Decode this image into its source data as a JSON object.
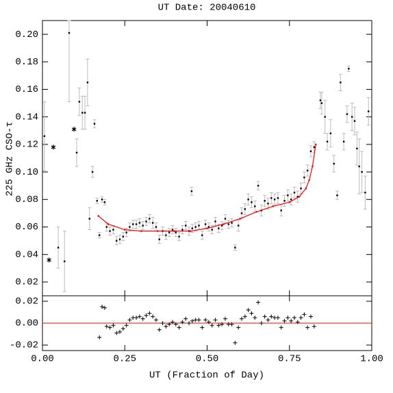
{
  "chart_data": [
    {
      "type": "scatter",
      "title": "UT Date: 20040610",
      "y_label": "225 GHz CSO-τ",
      "xlim": [
        0,
        1
      ],
      "ylim": [
        0.01,
        0.21
      ],
      "yticks": [
        {
          "value": 0.02,
          "label": "0.02"
        },
        {
          "value": 0.04,
          "label": "0.04"
        },
        {
          "value": 0.06,
          "label": "0.06"
        },
        {
          "value": 0.08,
          "label": "0.08"
        },
        {
          "value": 0.1,
          "label": "0.10"
        },
        {
          "value": 0.12,
          "label": "0.12"
        },
        {
          "value": 0.14,
          "label": "0.14"
        },
        {
          "value": 0.16,
          "label": "0.16"
        },
        {
          "value": 0.18,
          "label": "0.18"
        },
        {
          "value": 0.2,
          "label": "0.20"
        }
      ],
      "series": [
        {
          "marker": "dot",
          "color": "#000000",
          "error_color": "#bbbbbb",
          "x": [
            0.006,
            0.048,
            0.067,
            0.081,
            0.104,
            0.112,
            0.121,
            0.129,
            0.137,
            0.143,
            0.152,
            0.158,
            0.166,
            0.173,
            0.181,
            0.189,
            0.195,
            0.205,
            0.215,
            0.225,
            0.235,
            0.245,
            0.255,
            0.265,
            0.275,
            0.285,
            0.295,
            0.305,
            0.315,
            0.325,
            0.335,
            0.345,
            0.355,
            0.365,
            0.375,
            0.385,
            0.395,
            0.405,
            0.415,
            0.425,
            0.435,
            0.445,
            0.455,
            0.465,
            0.475,
            0.485,
            0.495,
            0.505,
            0.515,
            0.525,
            0.535,
            0.545,
            0.555,
            0.565,
            0.575,
            0.585,
            0.595,
            0.605,
            0.615,
            0.625,
            0.635,
            0.645,
            0.655,
            0.665,
            0.675,
            0.685,
            0.695,
            0.705,
            0.715,
            0.725,
            0.735,
            0.745,
            0.755,
            0.765,
            0.775,
            0.785,
            0.795,
            0.805,
            0.815,
            0.825,
            0.453,
            0.844,
            0.848,
            0.858,
            0.865,
            0.875,
            0.885,
            0.895,
            0.905,
            0.915,
            0.925,
            0.93,
            0.94,
            0.948,
            0.955,
            0.962,
            0.97,
            0.98,
            0.99
          ],
          "values": [
            0.126,
            0.045,
            0.035,
            0.201,
            0.114,
            0.151,
            0.143,
            0.143,
            0.165,
            0.066,
            0.1,
            0.135,
            0.079,
            0.054,
            0.08,
            0.078,
            0.06,
            0.057,
            0.058,
            0.05,
            0.051,
            0.053,
            0.056,
            0.06,
            0.062,
            0.062,
            0.063,
            0.061,
            0.064,
            0.066,
            0.063,
            0.06,
            0.051,
            0.057,
            0.054,
            0.056,
            0.058,
            0.056,
            0.053,
            0.058,
            0.061,
            0.057,
            0.059,
            0.06,
            0.061,
            0.054,
            0.062,
            0.06,
            0.058,
            0.064,
            0.059,
            0.061,
            0.066,
            0.062,
            0.063,
            0.045,
            0.061,
            0.07,
            0.073,
            0.08,
            0.078,
            0.075,
            0.09,
            0.072,
            0.079,
            0.077,
            0.081,
            0.08,
            0.081,
            0.072,
            0.079,
            0.083,
            0.08,
            0.085,
            0.082,
            0.088,
            0.096,
            0.101,
            0.115,
            0.118,
            0.086,
            0.152,
            0.15,
            0.14,
            0.122,
            0.128,
            0.106,
            0.083,
            0.165,
            0.122,
            0.142,
            0.175,
            0.14,
            0.137,
            0.117,
            0.104,
            0.1,
            0.085,
            0.144
          ],
          "errors": [
            0.025,
            0.015,
            0.022,
            0.05,
            0.01,
            0.01,
            0.012,
            0.012,
            0.017,
            0.008,
            0.004,
            0.003,
            0.002,
            0.002,
            0.002,
            0.002,
            0.003,
            0.003,
            0.003,
            0.003,
            0.003,
            0.003,
            0.003,
            0.003,
            0.003,
            0.003,
            0.003,
            0.003,
            0.003,
            0.003,
            0.004,
            0.003,
            0.003,
            0.003,
            0.003,
            0.003,
            0.003,
            0.003,
            0.003,
            0.003,
            0.003,
            0.003,
            0.003,
            0.003,
            0.003,
            0.003,
            0.003,
            0.003,
            0.003,
            0.003,
            0.003,
            0.003,
            0.003,
            0.003,
            0.003,
            0.002,
            0.004,
            0.004,
            0.004,
            0.004,
            0.004,
            0.004,
            0.003,
            0.004,
            0.004,
            0.004,
            0.004,
            0.004,
            0.004,
            0.004,
            0.004,
            0.004,
            0.004,
            0.004,
            0.004,
            0.004,
            0.004,
            0.004,
            0.004,
            0.004,
            0.003,
            0.006,
            0.008,
            0.012,
            0.006,
            0.01,
            0.006,
            0.003,
            0.006,
            0.006,
            0.006,
            0.002,
            0.01,
            0.01,
            0.012,
            0.02,
            0.015,
            0.012,
            0.01
          ]
        },
        {
          "marker": "star",
          "color": "#000000",
          "x": [
            0.02,
            0.033,
            0.096
          ],
          "values": [
            0.036,
            0.118,
            0.131
          ]
        },
        {
          "marker": "line",
          "color": "#ff0000",
          "x": [
            0.17,
            0.2,
            0.25,
            0.3,
            0.35,
            0.4,
            0.45,
            0.5,
            0.55,
            0.6,
            0.65,
            0.7,
            0.75,
            0.78,
            0.8,
            0.81,
            0.82,
            0.83
          ],
          "values": [
            0.068,
            0.062,
            0.058,
            0.057,
            0.057,
            0.057,
            0.057,
            0.059,
            0.062,
            0.066,
            0.071,
            0.075,
            0.078,
            0.082,
            0.088,
            0.094,
            0.104,
            0.12
          ]
        }
      ]
    },
    {
      "type": "scatter",
      "x_label": "UT (Fraction of Day)",
      "xlim": [
        0,
        1
      ],
      "xticks": [
        {
          "value": 0,
          "label": "0.00"
        },
        0.25,
        {
          "value": 0.5,
          "label": "0.50"
        },
        0.75,
        {
          "value": 1,
          "label": "1.00"
        }
      ],
      "ylim": [
        -0.025,
        0.025
      ],
      "yticks": [
        {
          "value": -0.02,
          "label": "-0.02"
        },
        {
          "value": 0,
          "label": "0.00"
        },
        {
          "value": 0.02,
          "label": "0.02"
        }
      ],
      "reference_line": 0,
      "reference_color": "#ff0000",
      "series": [
        {
          "marker": "plus",
          "color": "#000000",
          "x": [
            0.173,
            0.181,
            0.189,
            0.195,
            0.205,
            0.215,
            0.225,
            0.235,
            0.245,
            0.255,
            0.265,
            0.275,
            0.285,
            0.295,
            0.305,
            0.315,
            0.325,
            0.335,
            0.345,
            0.355,
            0.365,
            0.375,
            0.385,
            0.395,
            0.405,
            0.415,
            0.425,
            0.435,
            0.445,
            0.455,
            0.465,
            0.475,
            0.485,
            0.495,
            0.505,
            0.515,
            0.525,
            0.535,
            0.545,
            0.555,
            0.565,
            0.575,
            0.585,
            0.595,
            0.605,
            0.615,
            0.625,
            0.635,
            0.645,
            0.655,
            0.665,
            0.675,
            0.685,
            0.695,
            0.705,
            0.715,
            0.725,
            0.735,
            0.745,
            0.755,
            0.765,
            0.775,
            0.785,
            0.795,
            0.805,
            0.815,
            0.825
          ],
          "values": [
            -0.013,
            0.015,
            0.014,
            -0.003,
            -0.004,
            -0.002,
            -0.009,
            -0.008,
            -0.005,
            -0.002,
            0.003,
            0.005,
            0.005,
            0.006,
            0.004,
            0.007,
            0.009,
            0.006,
            0.003,
            -0.006,
            0,
            -0.003,
            -0.001,
            0.001,
            -0.001,
            -0.004,
            0.001,
            0.004,
            0,
            0.002,
            0.003,
            0.003,
            -0.004,
            0.003,
            0.001,
            -0.002,
            0.003,
            -0.002,
            -0.001,
            0.004,
            -0.001,
            -0.001,
            -0.018,
            -0.004,
            0.004,
            0.006,
            0.012,
            0.009,
            0.005,
            0.019,
            0,
            0.006,
            0.003,
            0.006,
            0.005,
            0.005,
            -0.004,
            0.002,
            0.005,
            0.002,
            0.005,
            0.001,
            0.005,
            0.008,
            -0.004,
            0.006,
            -0.003
          ]
        }
      ]
    }
  ]
}
